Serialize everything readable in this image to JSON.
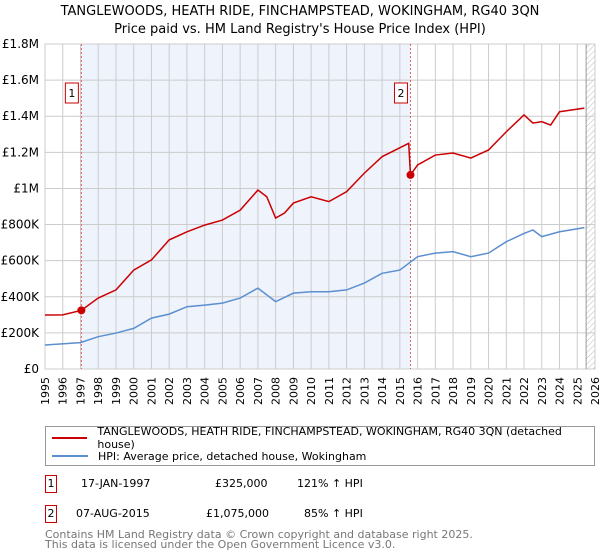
{
  "chart_data": {
    "type": "line",
    "title": "TANGLEWOODS, HEATH RIDE, FINCHAMPSTEAD, WOKINGHAM, RG40 3QN",
    "subtitle": "Price paid vs. HM Land Registry's House Price Index (HPI)",
    "xlim": [
      1995,
      2026
    ],
    "ylim": [
      0,
      1800000
    ],
    "x_ticks": [
      "1995",
      "1996",
      "1997",
      "1998",
      "1999",
      "2000",
      "2001",
      "2002",
      "2003",
      "2004",
      "2005",
      "2006",
      "2007",
      "2008",
      "2009",
      "2010",
      "2011",
      "2012",
      "2013",
      "2014",
      "2015",
      "2016",
      "2017",
      "2018",
      "2019",
      "2020",
      "2021",
      "2022",
      "2023",
      "2024",
      "2025",
      "2026"
    ],
    "y_ticks": [
      {
        "v": 0,
        "l": "£0"
      },
      {
        "v": 200000,
        "l": "£200K"
      },
      {
        "v": 400000,
        "l": "£400K"
      },
      {
        "v": 600000,
        "l": "£600K"
      },
      {
        "v": 800000,
        "l": "£800K"
      },
      {
        "v": 1000000,
        "l": "£1M"
      },
      {
        "v": 1200000,
        "l": "£1.2M"
      },
      {
        "v": 1400000,
        "l": "£1.4M"
      },
      {
        "v": 1600000,
        "l": "£1.6M"
      },
      {
        "v": 1800000,
        "l": "£1.8M"
      }
    ],
    "grid": true,
    "shaded_range": [
      1997.05,
      2015.6
    ],
    "series": [
      {
        "name": "TANGLEWOODS, HEATH RIDE, FINCHAMPSTEAD, WOKINGHAM, RG40 3QN (detached house)",
        "color": "#cc0000",
        "x": [
          1995,
          1996,
          1997.05,
          1998,
          1999,
          2000,
          2001,
          2002,
          2003,
          2004,
          2005,
          2006,
          2007,
          2007.5,
          2008,
          2008.5,
          2009,
          2010,
          2011,
          2012,
          2013,
          2014,
          2015.5,
          2015.6,
          2016,
          2017,
          2018,
          2019,
          2020,
          2021,
          2022,
          2022.5,
          2023,
          2023.5,
          2024,
          2025.4
        ],
        "y": [
          299000,
          300000,
          325000,
          393000,
          438000,
          548000,
          604000,
          715000,
          760000,
          797000,
          825000,
          880000,
          991000,
          954000,
          836000,
          864000,
          919000,
          954000,
          927000,
          982000,
          1085000,
          1176000,
          1250000,
          1075000,
          1130000,
          1185000,
          1196000,
          1168000,
          1213000,
          1314000,
          1407000,
          1362000,
          1370000,
          1351000,
          1425000,
          1445000
        ]
      },
      {
        "name": "HPI: Average price, detached house, Wokingham",
        "color": "#5b8fd0",
        "x": [
          1995,
          1997,
          1998,
          1999,
          2000,
          2001,
          2002,
          2003,
          2004,
          2005,
          2006,
          2007,
          2008,
          2009,
          2010,
          2011,
          2012,
          2013,
          2014,
          2015,
          2016,
          2017,
          2018,
          2019,
          2020,
          2021,
          2022,
          2022.5,
          2023,
          2024,
          2025.4
        ],
        "y": [
          133000,
          146000,
          179000,
          199000,
          225000,
          282000,
          304000,
          345000,
          354000,
          365000,
          393000,
          448000,
          373000,
          420000,
          428000,
          428000,
          438000,
          476000,
          530000,
          548000,
          622000,
          642000,
          650000,
          622000,
          642000,
          705000,
          751000,
          770000,
          733000,
          760000,
          783000
        ]
      }
    ],
    "sales": [
      {
        "label": "1",
        "x": 1997.05,
        "y": 325000,
        "date": "17-JAN-1997",
        "price": "£325,000",
        "hpi": "121% ↑ HPI"
      },
      {
        "label": "2",
        "x": 2015.6,
        "y": 1075000,
        "date": "07-AUG-2015",
        "price": "£1,075,000",
        "hpi": "85% ↑ HPI"
      }
    ]
  },
  "footer": [
    "Contains HM Land Registry data © Crown copyright and database right 2025.",
    "This data is licensed under the Open Government Licence v3.0."
  ]
}
